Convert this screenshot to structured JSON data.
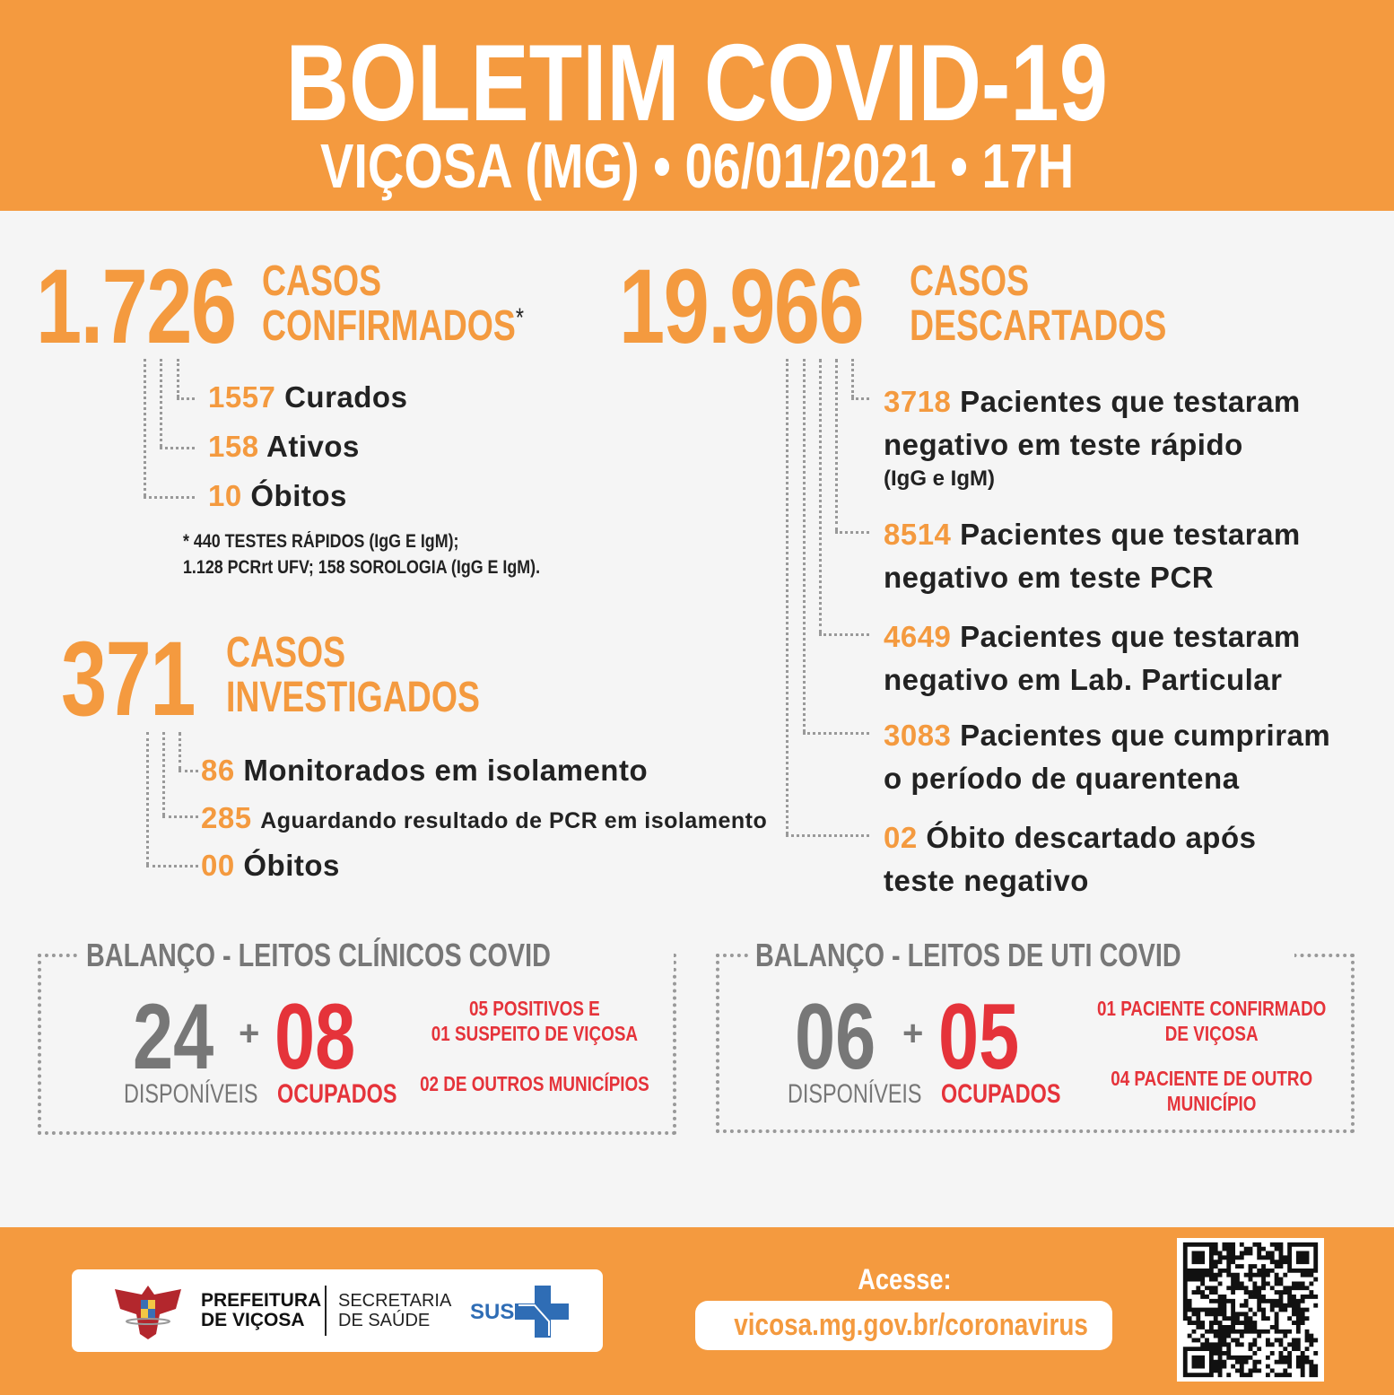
{
  "header": {
    "title": "BOLETIM COVID-19",
    "city": "VIÇOSA (MG)",
    "date": "06/01/2021",
    "time": "17H",
    "separator": "•"
  },
  "confirmed": {
    "number": "1.726",
    "label1": "CASOS",
    "label2": "CONFIRMADOS",
    "asterisk": "*",
    "items": [
      {
        "value": "1557",
        "label": "Curados"
      },
      {
        "value": "158",
        "label": "Ativos"
      },
      {
        "value": "10",
        "label": "Óbitos"
      }
    ],
    "note1": "* 440 TESTES RÁPIDOS (IgG E IgM);",
    "note2": "1.128 PCRrt UFV; 158 SOROLOGIA (IgG E IgM)."
  },
  "investigated": {
    "number": "371",
    "label1": "CASOS",
    "label2": "INVESTIGADOS",
    "items": [
      {
        "value": "86",
        "label": "Monitorados em isolamento"
      },
      {
        "value": "285",
        "label": "Aguardando resultado de PCR em isolamento"
      },
      {
        "value": "00",
        "label": "Óbitos"
      }
    ]
  },
  "discarded": {
    "number": "19.966",
    "label1": "CASOS",
    "label2": "DESCARTADOS",
    "items": [
      {
        "value": "3718",
        "line1": "Pacientes que testaram",
        "line2": "negativo em teste rápido",
        "line3": "(IgG e IgM)"
      },
      {
        "value": "8514",
        "line1": "Pacientes que testaram",
        "line2": "negativo em teste PCR"
      },
      {
        "value": "4649",
        "line1": "Pacientes que testaram",
        "line2": "negativo em Lab. Particular"
      },
      {
        "value": "3083",
        "line1": "Pacientes que cumpriram",
        "line2": "o período de quarentena"
      },
      {
        "value": "02",
        "line1": "Óbito descartado após",
        "line2": "teste negativo"
      }
    ]
  },
  "beds_clinical": {
    "title": "BALANÇO - LEITOS CLÍNICOS COVID",
    "available": "24",
    "available_label": "DISPONÍVEIS",
    "plus": "+",
    "occupied": "08",
    "occupied_label": "OCUPADOS",
    "note1a": "05 POSITIVOS E",
    "note1b": "01 SUSPEITO DE VIÇOSA",
    "note2a": "02 DE OUTROS MUNICÍPIOS",
    "note2b": ""
  },
  "beds_icu": {
    "title": "BALANÇO - LEITOS DE UTI COVID",
    "available": "06",
    "available_label": "DISPONÍVEIS",
    "plus": "+",
    "occupied": "05",
    "occupied_label": "OCUPADOS",
    "note1a": "01 PACIENTE CONFIRMADO",
    "note1b": "DE VIÇOSA",
    "note2a": "04 PACIENTE DE OUTRO",
    "note2b": "MUNICÍPIO"
  },
  "footer": {
    "prefeitura1": "PREFEITURA",
    "prefeitura2": "DE VIÇOSA",
    "secretaria1": "SECRETARIA",
    "secretaria2": "DE SAÚDE",
    "sus": "SUS",
    "access_label": "Acesse:",
    "url": "vicosa.mg.gov.br/coronavirus"
  },
  "colors": {
    "orange": "#f49a3f",
    "red": "#e5333a",
    "grey": "#777777",
    "background": "#f5f5f5",
    "sus_blue": "#2f6db5",
    "crest_red": "#b3272d"
  },
  "icons": [
    "coat-of-arms-logo",
    "sus-cross-logo",
    "qr-code"
  ]
}
